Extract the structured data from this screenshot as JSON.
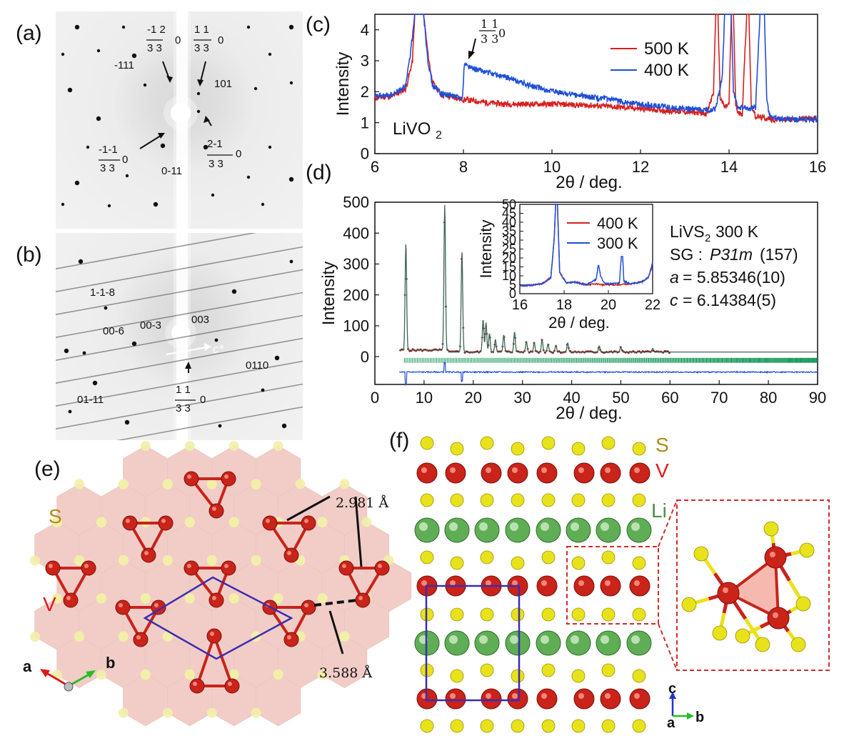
{
  "panels": {
    "a": "(a)",
    "b": "(b)",
    "c": "(c)",
    "d": "(d)",
    "e": "(e)",
    "f": "(f)"
  },
  "diffraction_a": {
    "labels": [
      "-1 2",
      "3 3",
      "0",
      "1 1",
      "3 3",
      "0",
      "-111",
      "101",
      "-1-1",
      "3 3",
      "0",
      "2-1",
      "3 3",
      "0",
      "0-11"
    ]
  },
  "diffraction_b": {
    "labels": [
      "1-1-8",
      "00-6",
      "00-3",
      "003",
      "c*",
      "0110",
      "01-11",
      "1 1",
      "3 3",
      "0"
    ]
  },
  "chart_data": [
    {
      "id": "c",
      "type": "line",
      "xlabel": "2θ / deg.",
      "ylabel": "Intensity",
      "xlim": [
        6,
        16
      ],
      "ylim": [
        0,
        4.5
      ],
      "xticks": [
        6,
        8,
        10,
        12,
        14,
        16
      ],
      "yticks": [
        0,
        1,
        2,
        3,
        4
      ],
      "annotation_sample": "LiVO",
      "annotation_sample_sub": "2",
      "annotation_peak": [
        "1 1",
        "3 3",
        "0"
      ],
      "series": [
        {
          "name": "500 K",
          "color": "#d81e1e",
          "x": [
            6.0,
            6.4,
            6.7,
            6.85,
            6.9,
            7.0,
            7.1,
            7.2,
            7.3,
            7.5,
            8.0,
            8.5,
            9.0,
            10.0,
            11.0,
            12.0,
            13.0,
            13.5,
            13.65,
            13.7,
            13.75,
            13.8,
            13.9,
            14.0,
            14.05,
            14.1,
            14.15,
            14.2,
            14.3,
            14.35,
            14.4,
            14.45,
            14.5,
            14.6,
            15.0,
            15.5,
            16.0
          ],
          "values": [
            1.8,
            1.85,
            2.1,
            3.0,
            4.5,
            4.5,
            4.5,
            3.2,
            2.3,
            1.9,
            1.75,
            1.65,
            1.6,
            1.6,
            1.55,
            1.45,
            1.35,
            1.3,
            2.0,
            4.5,
            4.5,
            1.8,
            1.5,
            1.6,
            4.5,
            4.5,
            1.6,
            1.3,
            1.3,
            3.0,
            4.5,
            4.5,
            1.6,
            1.2,
            1.1,
            1.1,
            1.15
          ]
        },
        {
          "name": "400 K",
          "color": "#1e4fd8",
          "x": [
            6.0,
            6.4,
            6.7,
            6.8,
            6.9,
            7.0,
            7.1,
            7.2,
            7.3,
            7.5,
            7.8,
            7.98,
            8.02,
            8.2,
            8.6,
            9.0,
            9.5,
            10.0,
            11.0,
            12.0,
            13.0,
            13.5,
            13.7,
            13.85,
            13.9,
            14.0,
            14.05,
            14.1,
            14.2,
            14.4,
            14.6,
            14.65,
            14.7,
            14.8,
            14.85,
            14.9,
            15.0,
            15.5,
            16.0
          ],
          "values": [
            1.85,
            1.9,
            2.2,
            3.2,
            4.5,
            4.5,
            4.5,
            3.0,
            2.2,
            1.95,
            1.85,
            1.8,
            2.9,
            2.75,
            2.6,
            2.45,
            2.2,
            2.0,
            1.8,
            1.6,
            1.45,
            1.4,
            1.45,
            2.5,
            4.5,
            4.5,
            4.5,
            2.0,
            1.5,
            1.45,
            1.5,
            3.0,
            4.5,
            4.5,
            1.8,
            1.3,
            1.15,
            1.1,
            1.1
          ]
        }
      ]
    },
    {
      "id": "d",
      "type": "line",
      "xlabel": "2θ / deg.",
      "ylabel": "Intensity",
      "xlim": [
        0,
        90
      ],
      "ylim": [
        -90,
        500
      ],
      "xticks": [
        0,
        10,
        20,
        30,
        40,
        50,
        60,
        70,
        80,
        90
      ],
      "yticks": [
        0,
        100,
        200,
        300,
        400,
        500
      ],
      "text_block": {
        "sample": "LiVS",
        "sample_sub": "2",
        "sample_temp": "300 K",
        "sg_prefix": "SG : ",
        "sg_symbol": "P31m",
        "sg_number": "(157)",
        "a_param": "a",
        "a_value": "= 5.85346(10)",
        "c_param": "c",
        "c_value": "= 6.14384(5)"
      },
      "peaks": [
        {
          "x": 6.3,
          "y": 345
        },
        {
          "x": 14.2,
          "y": 470
        },
        {
          "x": 17.7,
          "y": 325
        },
        {
          "x": 22.0,
          "y": 105
        },
        {
          "x": 22.6,
          "y": 95
        },
        {
          "x": 23.3,
          "y": 60
        },
        {
          "x": 24.5,
          "y": 40
        },
        {
          "x": 26.2,
          "y": 55
        },
        {
          "x": 28.4,
          "y": 65
        },
        {
          "x": 30.8,
          "y": 35
        },
        {
          "x": 32.4,
          "y": 30
        },
        {
          "x": 34.0,
          "y": 40
        },
        {
          "x": 35.2,
          "y": 25
        },
        {
          "x": 36.8,
          "y": 22
        },
        {
          "x": 39.2,
          "y": 30
        },
        {
          "x": 45.6,
          "y": 20
        },
        {
          "x": 50.0,
          "y": 15
        },
        {
          "x": 56.5,
          "y": 12
        }
      ],
      "background": 15,
      "difference_offset": -50,
      "inset": {
        "xlim": [
          16,
          22
        ],
        "ylim": [
          0,
          50
        ],
        "xticks": [
          16,
          18,
          20,
          22
        ],
        "yticks": [
          0,
          5,
          10,
          15,
          20,
          25,
          30,
          35,
          40,
          45,
          50
        ],
        "xlabel": "2θ / deg.",
        "ylabel": "Intensity",
        "series": [
          {
            "name": "400 K",
            "color": "#d81e1e",
            "x": [
              16.0,
              16.5,
              17.0,
              17.4,
              17.55,
              17.62,
              17.7,
              17.8,
              18.1,
              18.5,
              19.0,
              19.5,
              19.7,
              20.0,
              20.5,
              21.0,
              21.5,
              21.8,
              21.95,
              22.0
            ],
            "values": [
              4.5,
              4.7,
              5.5,
              9.0,
              30.0,
              50.0,
              50.0,
              12.0,
              6.0,
              6.5,
              5.0,
              5.5,
              5.0,
              5.0,
              5.0,
              5.5,
              6.5,
              9.0,
              15.0,
              18.0
            ]
          },
          {
            "name": "300 K",
            "color": "#1e4fd8",
            "x": [
              16.0,
              16.5,
              17.0,
              17.4,
              17.55,
              17.62,
              17.7,
              17.8,
              18.1,
              18.5,
              19.0,
              19.45,
              19.55,
              19.65,
              19.8,
              20.0,
              20.5,
              20.62,
              20.7,
              21.0,
              21.5,
              21.8,
              21.95,
              22.0
            ],
            "values": [
              4.5,
              4.7,
              5.5,
              9.0,
              30.0,
              50.0,
              50.0,
              12.0,
              6.0,
              6.5,
              5.0,
              8.0,
              16.5,
              10.0,
              6.0,
              5.5,
              6.0,
              27.0,
              7.0,
              5.5,
              6.5,
              9.0,
              14.0,
              18.0
            ]
          }
        ]
      }
    }
  ],
  "structure_e": {
    "label_S": "S",
    "label_V": "V",
    "dist1": "2.981 Å",
    "dist2": "3.588 Å",
    "axis_a": "a",
    "axis_b": "b"
  },
  "structure_f": {
    "label_S": "S",
    "label_V": "V",
    "label_Li": "Li",
    "axis_c": "c",
    "axis_a": "a",
    "axis_b": "b"
  },
  "colors": {
    "s_atom": "#e8e21a",
    "v_atom": "#c9231a",
    "li_atom": "#5fae55",
    "cell": "#3a2db0",
    "red_line": "#d81e1e",
    "blue_line": "#1e4fd8",
    "green_ticks": "#1a9a5a"
  }
}
